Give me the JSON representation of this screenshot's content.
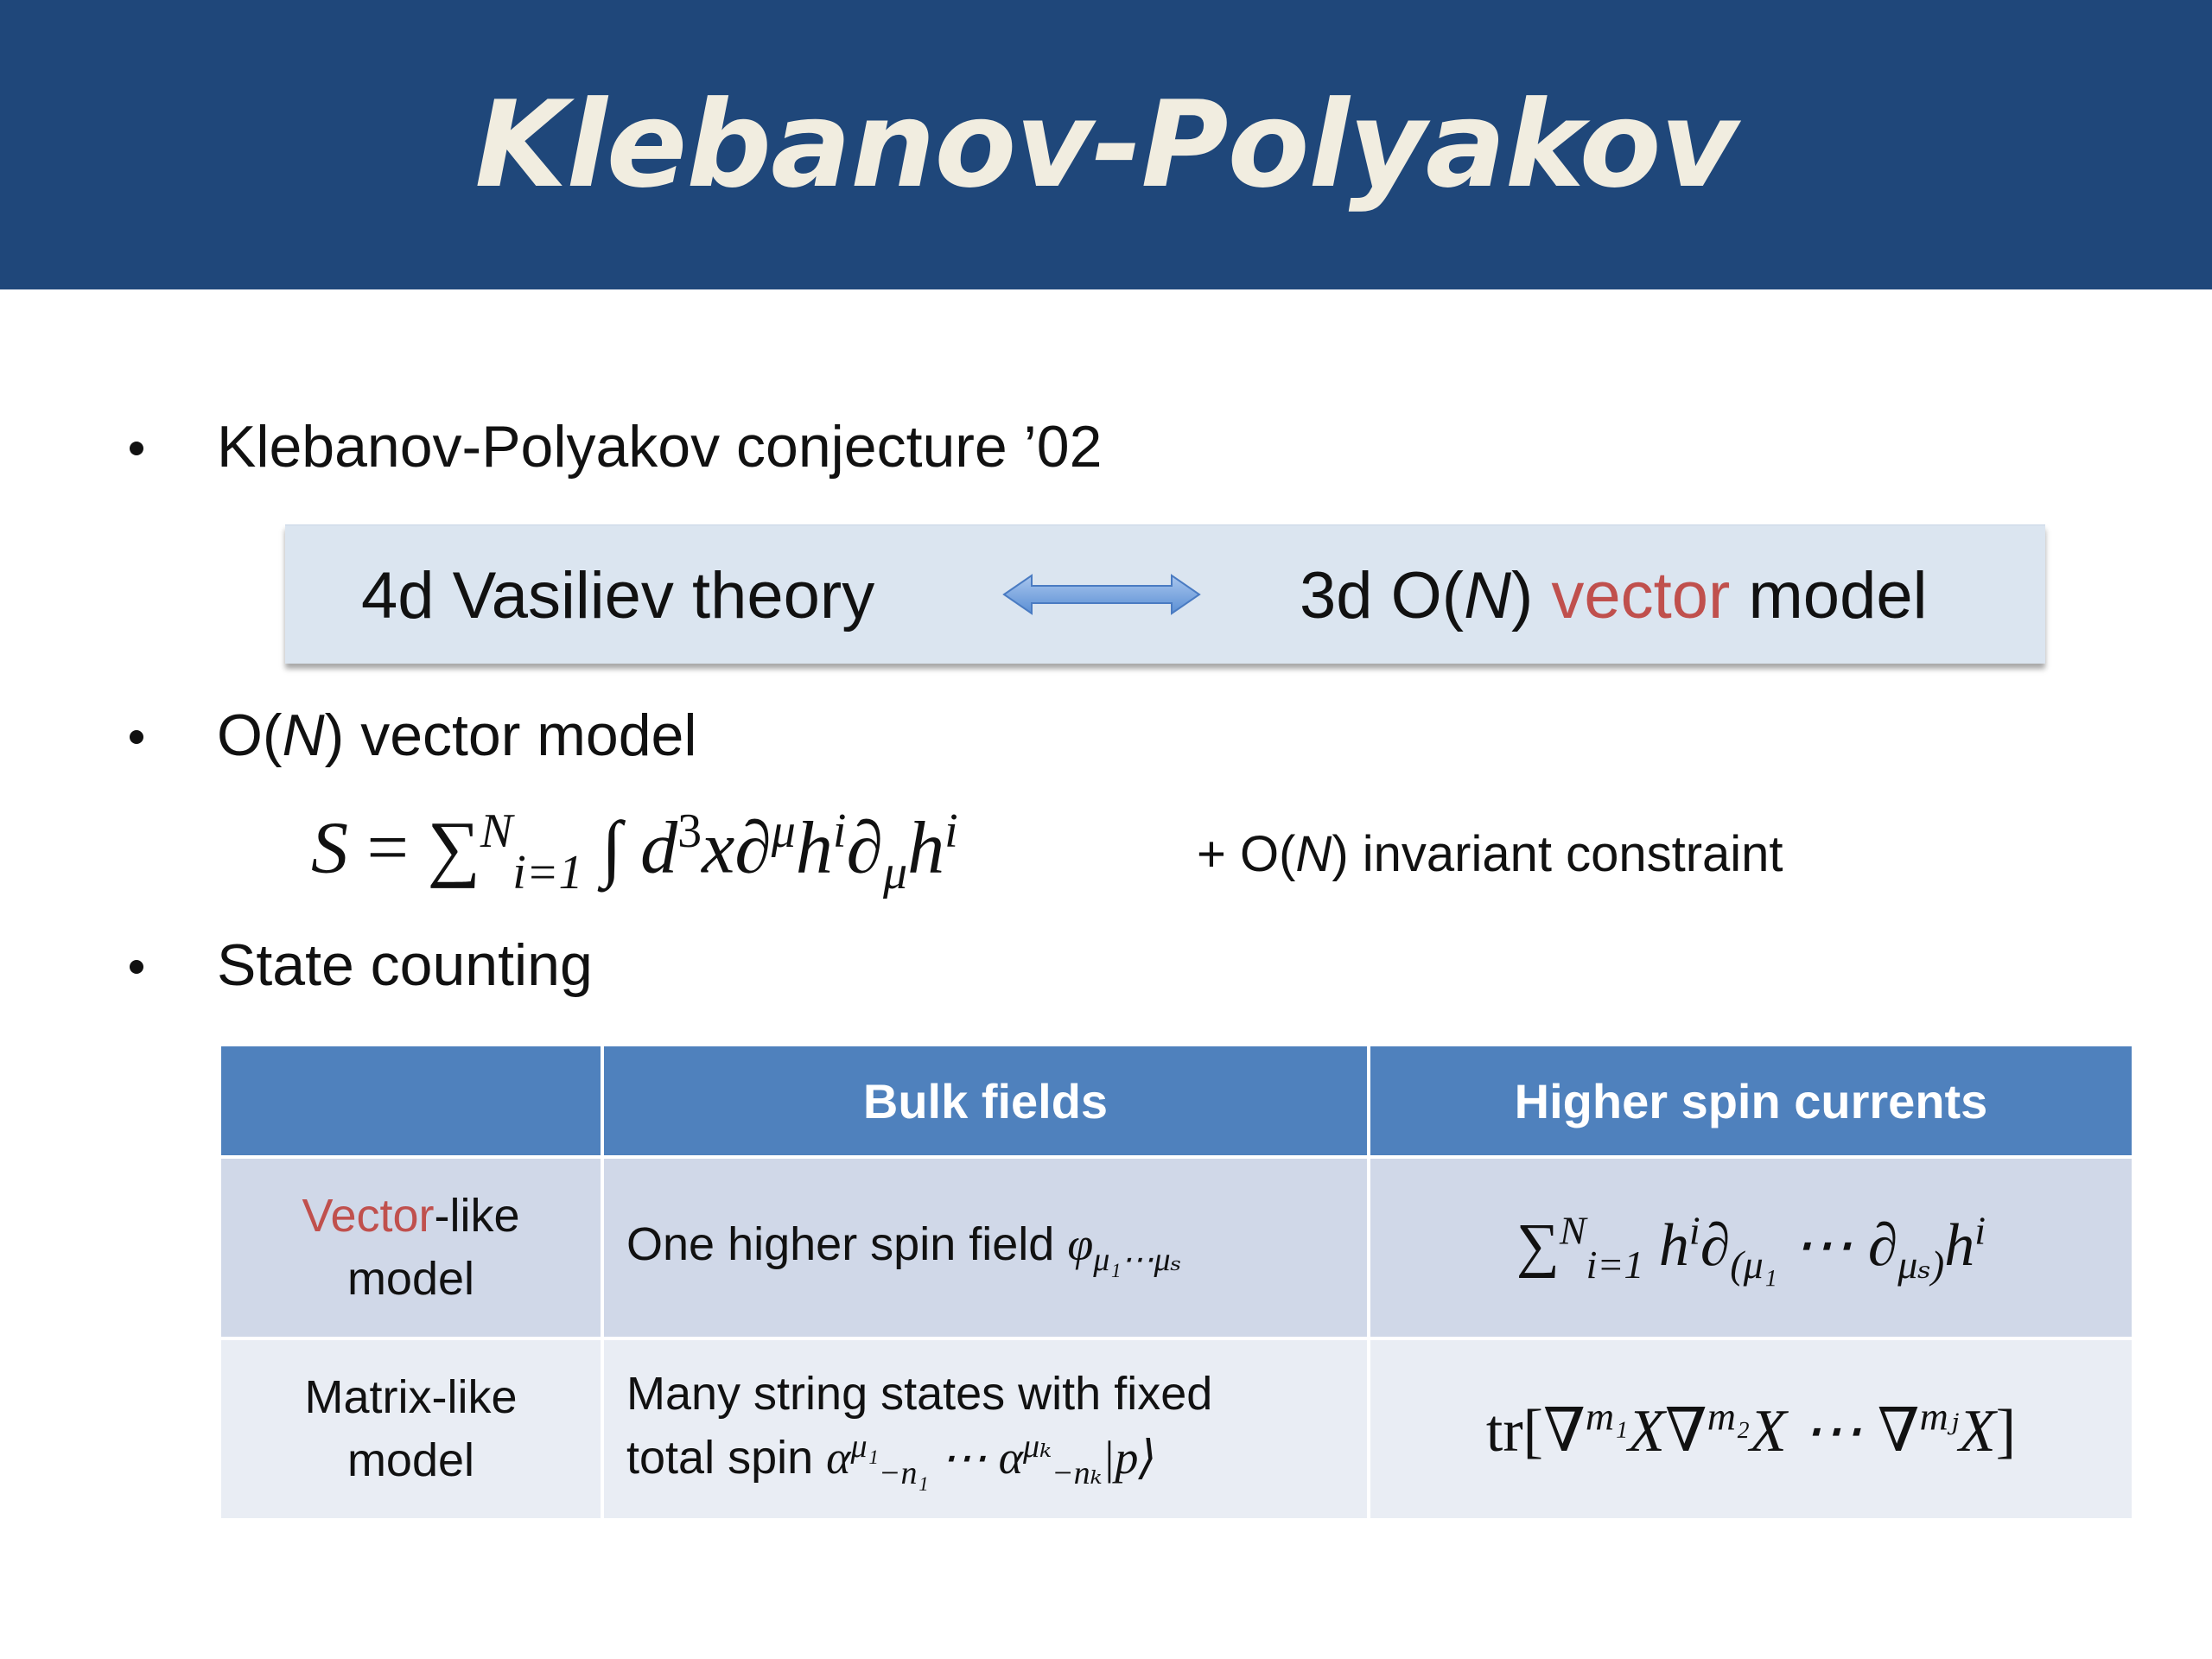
{
  "header": {
    "title": "Klebanov-Polyakov"
  },
  "bullets": [
    {
      "text": "Klebanov-Polyakov conjecture ’02"
    },
    {
      "prefix": "O(",
      "var": "N",
      "suffix": ") vector model"
    },
    {
      "text": "State counting"
    }
  ],
  "duality": {
    "left": "4d Vasiliev theory",
    "right_prefix": "3d O(",
    "right_var": "N",
    "right_mid": ") ",
    "right_highlight": "vector",
    "right_suffix": " model",
    "highlight_color": "#c0504d"
  },
  "action": {
    "lhs": "S",
    "eq": " = ",
    "sum": "∑",
    "sum_sup": "N",
    "sum_sub": "i=1",
    "integral": " ∫ ",
    "integrand_d": "d",
    "integrand_sup3": "3",
    "integrand_rest": "x∂",
    "mu_up": "μ",
    "h": "h",
    "i_sup": "i",
    "partial": "∂",
    "mu_down": "μ",
    "h2": "h",
    "i_sup2": "i"
  },
  "constraint": {
    "prefix": "+ O(",
    "var": "N",
    "suffix": ") invariant constraint"
  },
  "table": {
    "headers": [
      "",
      "Bulk fields",
      "Higher spin currents"
    ],
    "rows": [
      {
        "label_highlight": "Vector",
        "label_rest": "-like",
        "label_line2": "model",
        "bulk_text": "One higher spin field ",
        "bulk_phi": "φ",
        "bulk_phi_sub": "μ₁⋯μₛ",
        "current_sum": "∑",
        "current_sum_sup": "N",
        "current_sum_sub": "i=1",
        "current_h": " h",
        "current_i": "i",
        "current_partial1": "∂",
        "current_sub1": "(μ₁",
        "current_dots": " ⋯ ∂",
        "current_sub2": "μₛ)",
        "current_h2": "h",
        "current_i2": "i"
      },
      {
        "label_line1": "Matrix-like",
        "label_line2": "model",
        "bulk_line1": "Many string states with fixed",
        "bulk_line2_text": "total spin ",
        "bulk_alpha": "α",
        "bulk_alpha1_sup": "μ₁",
        "bulk_alpha1_sub": "−n₁",
        "bulk_dots": " ⋯ ",
        "bulk_alpha2_sup": "μₖ",
        "bulk_alpha2_sub": "−nₖ",
        "bulk_ket": "|p⟩",
        "current_tr": "tr[",
        "current_nabla": "∇",
        "current_m1": "m₁",
        "current_X1": "X",
        "current_m2": "m₂",
        "current_X2": "X ⋯ ",
        "current_mj": "mⱼ",
        "current_X3": "X",
        "current_close": "]"
      }
    ]
  }
}
